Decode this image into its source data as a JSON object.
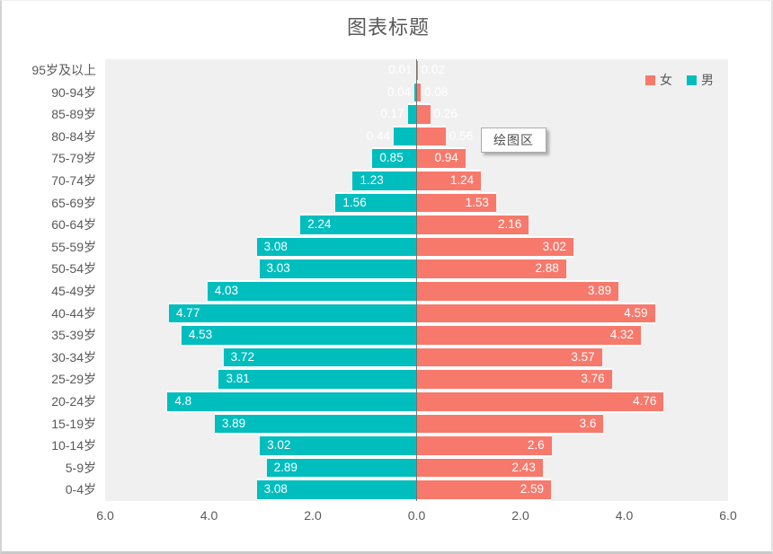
{
  "title": "图表标题",
  "plot_area_tooltip": "绘图区",
  "legend": {
    "position": "top-right",
    "items": [
      {
        "label": "女",
        "color": "#f7796c"
      },
      {
        "label": "男",
        "color": "#00bdbe"
      }
    ]
  },
  "x_axis": {
    "ticks": [
      "6.0",
      "4.0",
      "2.0",
      "0.0",
      "2.0",
      "4.0",
      "6.0"
    ]
  },
  "colors": {
    "male_bar": "#00bdbe",
    "female_bar": "#f7796c",
    "plot_background": "#f0f0f0",
    "text": "#595959",
    "center_axis_line": "#77706b",
    "data_label_text": "#ffffff"
  },
  "chart_data": {
    "type": "bar",
    "subtype": "population-pyramid",
    "title": "图表标题",
    "xlabel": "",
    "ylabel": "",
    "xlim": [
      -6,
      6
    ],
    "x_tick_interval": 2,
    "grid": false,
    "data_labels": true,
    "legend_position": "top-right",
    "categories": [
      "95岁及以上",
      "90-94岁",
      "85-89岁",
      "80-84岁",
      "75-79岁",
      "70-74岁",
      "65-69岁",
      "60-64岁",
      "55-59岁",
      "50-54岁",
      "45-49岁",
      "40-44岁",
      "35-39岁",
      "30-34岁",
      "25-29岁",
      "20-24岁",
      "15-19岁",
      "10-14岁",
      "5-9岁",
      "0-4岁"
    ],
    "series": [
      {
        "name": "男",
        "side": "left",
        "color": "#00bdbe",
        "values": [
          0.01,
          0.04,
          0.17,
          0.44,
          0.85,
          1.23,
          1.56,
          2.24,
          3.08,
          3.03,
          4.03,
          4.77,
          4.53,
          3.72,
          3.81,
          4.8,
          3.89,
          3.02,
          2.89,
          3.08
        ]
      },
      {
        "name": "女",
        "side": "right",
        "color": "#f7796c",
        "values": [
          0.02,
          0.08,
          0.26,
          0.56,
          0.94,
          1.24,
          1.53,
          2.16,
          3.02,
          2.88,
          3.89,
          4.59,
          4.32,
          3.57,
          3.76,
          4.76,
          3.6,
          2.6,
          2.43,
          2.59
        ]
      }
    ]
  }
}
